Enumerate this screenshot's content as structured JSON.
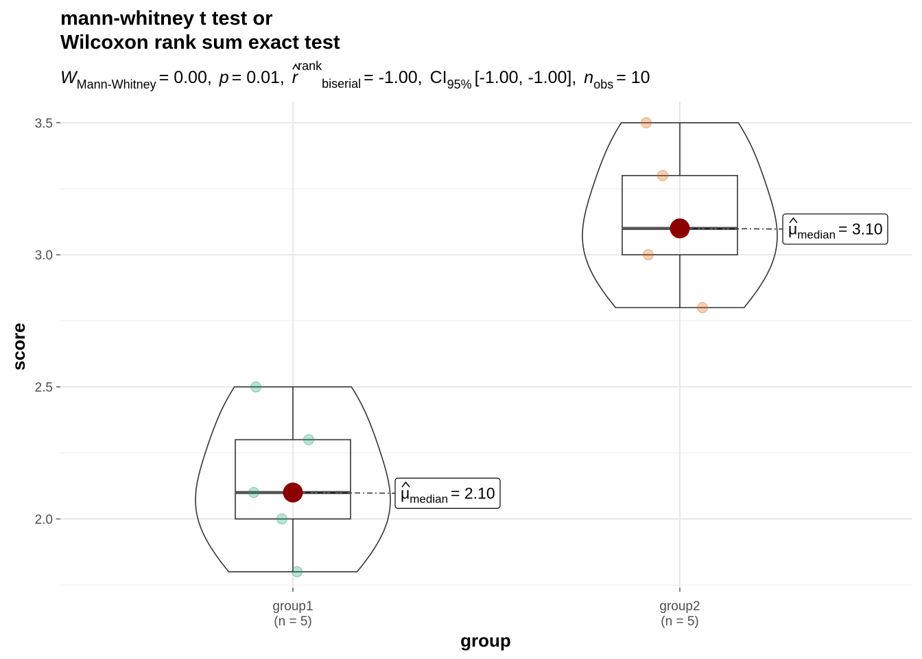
{
  "chart_data": {
    "type": "violin-box",
    "title_line1": "mann-whitney t test or",
    "title_line2": "Wilcoxon rank sum exact test",
    "subtitle": {
      "stat_symbol": "W",
      "stat_sub": "Mann-Whitney",
      "stat_value": "= 0.00,",
      "p_symbol": "p",
      "p_value": "= 0.01,",
      "effect_symbol": "r",
      "effect_sup": "rank",
      "effect_sub": "biserial",
      "effect_value": "= -1.00,",
      "ci_label": "CI",
      "ci_sub": "95%",
      "ci_value": "[-1.00, -1.00],",
      "n_symbol": "n",
      "n_sub": "obs",
      "n_value": "= 10"
    },
    "xlabel": "group",
    "ylabel": "score",
    "ylim": [
      1.74,
      3.58
    ],
    "yticks": [
      "2.0",
      "2.5",
      "3.0",
      "3.5"
    ],
    "categories": [
      "group1",
      "group2"
    ],
    "category_n": [
      "(n = 5)",
      "(n = 5)"
    ],
    "groups": [
      {
        "name": "group1",
        "points": [
          2.5,
          2.3,
          2.1,
          2.0,
          1.8
        ],
        "box": {
          "min": 1.8,
          "q1": 2.0,
          "median": 2.1,
          "q3": 2.3,
          "max": 2.5
        },
        "point_color": "#1b9e77",
        "median_label_sub": "median",
        "median_label_value": "= 2.10"
      },
      {
        "name": "group2",
        "points": [
          3.5,
          3.3,
          3.1,
          3.0,
          2.8
        ],
        "box": {
          "min": 2.8,
          "q1": 3.0,
          "median": 3.1,
          "q3": 3.3,
          "max": 3.5
        },
        "point_color": "#d95f02",
        "median_label_sub": "median",
        "median_label_value": "= 3.10"
      }
    ],
    "median_color": "#8b0000",
    "mu_symbol": "μ",
    "grid": true
  }
}
